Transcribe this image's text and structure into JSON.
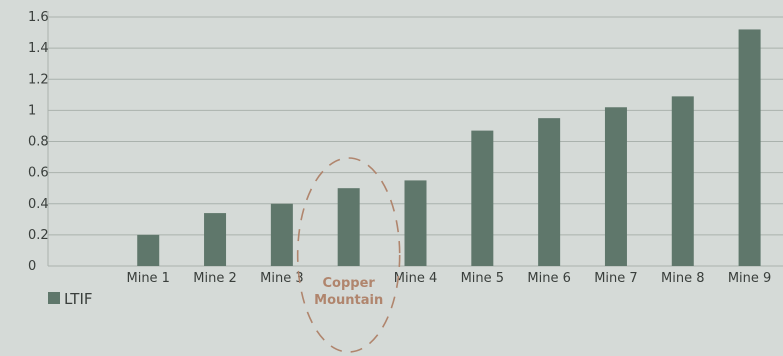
{
  "chart_data": {
    "type": "bar",
    "categories": [
      "",
      "Mine 1",
      "Mine 2",
      "Mine 3",
      "Copper Mountain",
      "Mine 4",
      "Mine 5",
      "Mine 6",
      "Mine 7",
      "Mine 8",
      "Mine 9"
    ],
    "series": [
      {
        "name": "LTIF",
        "values": [
          null,
          0.2,
          0.34,
          0.4,
          0.5,
          0.55,
          0.87,
          0.95,
          1.02,
          1.09,
          1.52
        ]
      }
    ],
    "ylim": [
      0,
      1.6
    ],
    "yticks": [
      "0",
      "0.2",
      "0.4",
      "0.6",
      "0.8",
      "1",
      "1.2",
      "1.4",
      "1.6"
    ],
    "highlight": {
      "category": "Copper Mountain",
      "label_lines": [
        "Copper",
        "Mountain"
      ],
      "style": "dashed-ellipse",
      "color": "#b0856d"
    },
    "grid": true,
    "legend": {
      "position": "bottom-left",
      "label": "LTIF"
    },
    "colors": {
      "bar": "#5f776b",
      "grid": "#aab2ad",
      "text": "#3a3f3c",
      "background": "#d5dad7"
    }
  }
}
